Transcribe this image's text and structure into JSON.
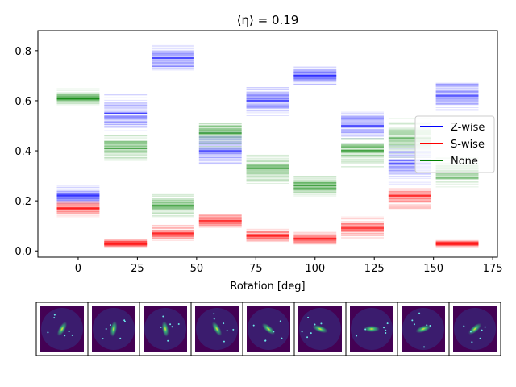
{
  "chart_data": {
    "type": "bar",
    "title": "⟨η⟩ =  0.19",
    "xlabel": "Rotation [deg]",
    "ylabel": "",
    "xlim": [
      -17,
      177
    ],
    "ylim": [
      -0.025,
      0.88
    ],
    "xticks": [
      0,
      25,
      50,
      75,
      100,
      125,
      150,
      175
    ],
    "yticks": [
      0.0,
      0.2,
      0.4,
      0.6,
      0.8
    ],
    "rotations": [
      0,
      20,
      40,
      60,
      80,
      100,
      120,
      140,
      160
    ],
    "bar_half_width": 9,
    "legend_position": "center right",
    "series": [
      {
        "name": "Z-wise",
        "color": "#0000ff",
        "means": [
          0.22,
          0.55,
          0.77,
          0.4,
          0.6,
          0.7,
          0.5,
          0.35,
          0.62
        ],
        "spreads": [
          0.05,
          0.09,
          0.07,
          0.09,
          0.08,
          0.05,
          0.09,
          0.1,
          0.09
        ]
      },
      {
        "name": "S-wise",
        "color": "#ff0000",
        "means": [
          0.17,
          0.03,
          0.07,
          0.12,
          0.06,
          0.05,
          0.09,
          0.22,
          0.03
        ],
        "spreads": [
          0.04,
          0.02,
          0.04,
          0.04,
          0.03,
          0.03,
          0.06,
          0.07,
          0.02
        ]
      },
      {
        "name": "None",
        "color": "#008000",
        "means": [
          0.61,
          0.41,
          0.18,
          0.47,
          0.33,
          0.26,
          0.4,
          0.45,
          0.32
        ],
        "spreads": [
          0.04,
          0.08,
          0.06,
          0.07,
          0.08,
          0.05,
          0.08,
          0.1,
          0.08
        ]
      }
    ],
    "thumbnails": {
      "count": 9,
      "rotations_deg": [
        0,
        20,
        40,
        60,
        80,
        100,
        120,
        140,
        160
      ],
      "background_color": "#440154",
      "disk_color": "#3b1c6e",
      "galaxy_color": "#35b779"
    }
  }
}
